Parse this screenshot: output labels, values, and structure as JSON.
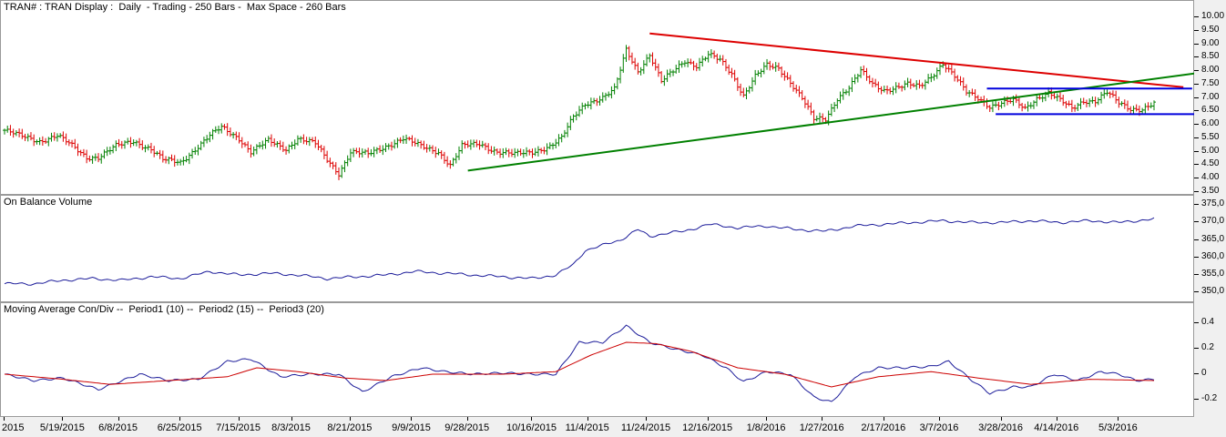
{
  "chart_data": [
    {
      "type": "candlestick",
      "title": "TRAN# : TRAN Display :  Daily  - Trading - 250 Bars -  Max Space - 260 Bars",
      "ylim": [
        3.5,
        10.0
      ],
      "y_ticks": [
        "10.00",
        "9.50",
        "9.00",
        "8.50",
        "8.00",
        "7.50",
        "7.00",
        "6.50",
        "6.00",
        "5.50",
        "5.00",
        "4.50",
        "4.00",
        "3.50"
      ],
      "y_tick_values": [
        10.0,
        9.5,
        9.0,
        8.5,
        8.0,
        7.5,
        7.0,
        6.5,
        6.0,
        5.5,
        5.0,
        4.5,
        4.0,
        3.5
      ],
      "close_path": [
        [
          0,
          5.8
        ],
        [
          5,
          5.6
        ],
        [
          12,
          5.4
        ],
        [
          18,
          5.6
        ],
        [
          22,
          5.3
        ],
        [
          28,
          4.8
        ],
        [
          32,
          4.8
        ],
        [
          38,
          5.2
        ],
        [
          44,
          5.4
        ],
        [
          50,
          5.1
        ],
        [
          54,
          4.7
        ],
        [
          60,
          4.6
        ],
        [
          66,
          5.2
        ],
        [
          70,
          5.6
        ],
        [
          74,
          5.9
        ],
        [
          80,
          5.5
        ],
        [
          84,
          5.0
        ],
        [
          90,
          5.4
        ],
        [
          96,
          5.1
        ],
        [
          100,
          5.5
        ],
        [
          106,
          5.3
        ],
        [
          110,
          4.7
        ],
        [
          114,
          4.2
        ],
        [
          118,
          5.0
        ],
        [
          124,
          4.9
        ],
        [
          130,
          5.2
        ],
        [
          136,
          5.5
        ],
        [
          142,
          5.2
        ],
        [
          148,
          5.0
        ],
        [
          152,
          4.5
        ],
        [
          156,
          5.2
        ],
        [
          162,
          5.3
        ],
        [
          168,
          5.0
        ],
        [
          174,
          4.9
        ],
        [
          180,
          5.0
        ],
        [
          186,
          5.2
        ],
        [
          190,
          5.5
        ],
        [
          194,
          6.3
        ],
        [
          198,
          6.8
        ],
        [
          204,
          7.0
        ],
        [
          208,
          7.3
        ],
        [
          212,
          8.8
        ],
        [
          216,
          8.0
        ],
        [
          220,
          8.6
        ],
        [
          224,
          7.6
        ],
        [
          228,
          8.0
        ],
        [
          232,
          8.4
        ],
        [
          236,
          8.2
        ],
        [
          240,
          8.6
        ],
        [
          244,
          8.4
        ],
        [
          248,
          7.9
        ],
        [
          252,
          7.1
        ],
        [
          256,
          7.8
        ],
        [
          260,
          8.2
        ],
        [
          264,
          8.1
        ],
        [
          268,
          7.6
        ],
        [
          272,
          7.0
        ],
        [
          276,
          6.2
        ],
        [
          280,
          6.2
        ],
        [
          284,
          7.0
        ],
        [
          288,
          7.4
        ],
        [
          292,
          8.0
        ],
        [
          296,
          7.5
        ],
        [
          300,
          7.3
        ],
        [
          304,
          7.4
        ],
        [
          308,
          7.5
        ],
        [
          312,
          7.4
        ],
        [
          316,
          7.8
        ],
        [
          320,
          8.3
        ],
        [
          324,
          7.8
        ],
        [
          328,
          7.2
        ],
        [
          332,
          7.0
        ],
        [
          336,
          6.7
        ],
        [
          340,
          6.8
        ],
        [
          344,
          6.9
        ],
        [
          348,
          6.6
        ],
        [
          352,
          7.0
        ],
        [
          356,
          7.2
        ],
        [
          360,
          6.9
        ],
        [
          364,
          6.6
        ],
        [
          368,
          6.9
        ],
        [
          372,
          6.9
        ],
        [
          376,
          7.2
        ],
        [
          380,
          6.8
        ],
        [
          384,
          6.6
        ],
        [
          388,
          6.6
        ],
        [
          392,
          6.8
        ]
      ],
      "trendlines": [
        {
          "color": "#dd0000",
          "from": [
            220,
            9.4
          ],
          "to": [
            402,
            7.4
          ]
        },
        {
          "color": "#008000",
          "from": [
            158,
            4.3
          ],
          "to": [
            412,
            8.0
          ]
        },
        {
          "color": "#0000dd",
          "from": [
            335,
            7.35
          ],
          "to": [
            405,
            7.35
          ]
        },
        {
          "color": "#0000dd",
          "from": [
            338,
            6.4
          ],
          "to": [
            412,
            6.4
          ]
        }
      ]
    },
    {
      "type": "line",
      "title": "On Balance Volume",
      "ylim": [
        348,
        374
      ],
      "y_ticks": [
        "375,0",
        "370,0",
        "365,0",
        "360,0",
        "355,0",
        "350,0"
      ],
      "y_tick_values": [
        375,
        370,
        365,
        360,
        355,
        350
      ],
      "series": [
        {
          "color": "#1c1c9a",
          "points": [
            [
              0,
              352.5
            ],
            [
              10,
              352.5
            ],
            [
              20,
              353.5
            ],
            [
              30,
              354.0
            ],
            [
              40,
              353.5
            ],
            [
              50,
              354.5
            ],
            [
              60,
              354.0
            ],
            [
              70,
              356.0
            ],
            [
              80,
              355.0
            ],
            [
              90,
              355.5
            ],
            [
              100,
              355.0
            ],
            [
              110,
              354.0
            ],
            [
              120,
              354.5
            ],
            [
              130,
              355.0
            ],
            [
              140,
              356.0
            ],
            [
              150,
              355.5
            ],
            [
              160,
              355.0
            ],
            [
              170,
              354.5
            ],
            [
              180,
              354.0
            ],
            [
              188,
              355.0
            ],
            [
              194,
              358.0
            ],
            [
              198,
              362.0
            ],
            [
              204,
              363.5
            ],
            [
              210,
              365.0
            ],
            [
              216,
              368.0
            ],
            [
              220,
              366.0
            ],
            [
              226,
              367.0
            ],
            [
              232,
              367.5
            ],
            [
              240,
              369.5
            ],
            [
              250,
              368.5
            ],
            [
              260,
              369.0
            ],
            [
              270,
              368.0
            ],
            [
              280,
              367.5
            ],
            [
              290,
              369.0
            ],
            [
              300,
              369.5
            ],
            [
              310,
              370.0
            ],
            [
              320,
              370.5
            ],
            [
              330,
              370.0
            ],
            [
              340,
              370.0
            ],
            [
              350,
              370.5
            ],
            [
              360,
              370.0
            ],
            [
              370,
              370.5
            ],
            [
              380,
              370.0
            ],
            [
              392,
              371.0
            ]
          ]
        }
      ]
    },
    {
      "type": "line",
      "title": "Moving Average Con/Div --  Period1 (10) --  Period2 (15) --  Period3 (20)",
      "ylim": [
        -0.3,
        0.5
      ],
      "y_ticks": [
        "0.4",
        "0.2",
        "0",
        "-0.2"
      ],
      "y_tick_values": [
        0.4,
        0.2,
        0.0,
        -0.2
      ],
      "series": [
        {
          "color": "#1c1c9a",
          "points": [
            [
              0,
              0.0
            ],
            [
              10,
              -0.05
            ],
            [
              20,
              -0.03
            ],
            [
              32,
              -0.12
            ],
            [
              46,
              0.0
            ],
            [
              56,
              -0.05
            ],
            [
              66,
              -0.04
            ],
            [
              76,
              0.1
            ],
            [
              84,
              0.12
            ],
            [
              94,
              -0.02
            ],
            [
              104,
              0.0
            ],
            [
              114,
              0.0
            ],
            [
              122,
              -0.14
            ],
            [
              132,
              -0.02
            ],
            [
              142,
              0.05
            ],
            [
              150,
              0.02
            ],
            [
              160,
              0.0
            ],
            [
              170,
              0.01
            ],
            [
              180,
              0.0
            ],
            [
              188,
              0.0
            ],
            [
              196,
              0.25
            ],
            [
              204,
              0.25
            ],
            [
              212,
              0.38
            ],
            [
              220,
              0.25
            ],
            [
              228,
              0.2
            ],
            [
              238,
              0.15
            ],
            [
              246,
              0.05
            ],
            [
              252,
              -0.06
            ],
            [
              260,
              0.02
            ],
            [
              268,
              0.0
            ],
            [
              276,
              -0.18
            ],
            [
              282,
              -0.22
            ],
            [
              290,
              -0.02
            ],
            [
              298,
              0.05
            ],
            [
              306,
              0.05
            ],
            [
              316,
              0.06
            ],
            [
              322,
              0.1
            ],
            [
              330,
              -0.05
            ],
            [
              336,
              -0.15
            ],
            [
              344,
              -0.1
            ],
            [
              350,
              -0.1
            ],
            [
              358,
              0.0
            ],
            [
              366,
              -0.05
            ],
            [
              374,
              0.02
            ],
            [
              380,
              0.0
            ],
            [
              386,
              -0.05
            ],
            [
              392,
              -0.04
            ]
          ]
        },
        {
          "color": "#cc0000",
          "points": [
            [
              0,
              0.0
            ],
            [
              20,
              -0.04
            ],
            [
              36,
              -0.08
            ],
            [
              56,
              -0.05
            ],
            [
              76,
              -0.02
            ],
            [
              86,
              0.05
            ],
            [
              100,
              0.02
            ],
            [
              116,
              -0.03
            ],
            [
              130,
              -0.05
            ],
            [
              146,
              0.0
            ],
            [
              170,
              0.0
            ],
            [
              188,
              0.02
            ],
            [
              200,
              0.15
            ],
            [
              212,
              0.25
            ],
            [
              222,
              0.24
            ],
            [
              234,
              0.18
            ],
            [
              250,
              0.05
            ],
            [
              266,
              0.0
            ],
            [
              282,
              -0.1
            ],
            [
              298,
              -0.02
            ],
            [
              316,
              0.02
            ],
            [
              332,
              -0.03
            ],
            [
              350,
              -0.08
            ],
            [
              370,
              -0.04
            ],
            [
              392,
              -0.05
            ]
          ]
        }
      ]
    }
  ],
  "date_labels": [
    {
      "label": "2015",
      "pos": 0
    },
    {
      "label": "5/19/2015",
      "pos": 20
    },
    {
      "label": "6/8/2015",
      "pos": 39
    },
    {
      "label": "6/25/2015",
      "pos": 60
    },
    {
      "label": "7/15/2015",
      "pos": 80
    },
    {
      "label": "8/3/2015",
      "pos": 98
    },
    {
      "label": "8/21/2015",
      "pos": 118
    },
    {
      "label": "9/9/2015",
      "pos": 139
    },
    {
      "label": "9/28/2015",
      "pos": 158
    },
    {
      "label": "10/16/2015",
      "pos": 180
    },
    {
      "label": "11/4/2015",
      "pos": 199
    },
    {
      "label": "11/24/2015",
      "pos": 219
    },
    {
      "label": "12/16/2015",
      "pos": 240
    },
    {
      "label": "1/8/2016",
      "pos": 260
    },
    {
      "label": "1/27/2016",
      "pos": 279
    },
    {
      "label": "2/17/2016",
      "pos": 300
    },
    {
      "label": "3/7/2016",
      "pos": 319
    },
    {
      "label": "3/28/2016",
      "pos": 340
    },
    {
      "label": "4/14/2016",
      "pos": 359
    },
    {
      "label": "5/3/2016",
      "pos": 380
    }
  ],
  "colors": {
    "up_bar": "#008000",
    "down_bar": "#dd0000",
    "obv_line": "#1c1c9a",
    "macd_line": "#1c1c9a",
    "signal_line": "#cc0000"
  }
}
